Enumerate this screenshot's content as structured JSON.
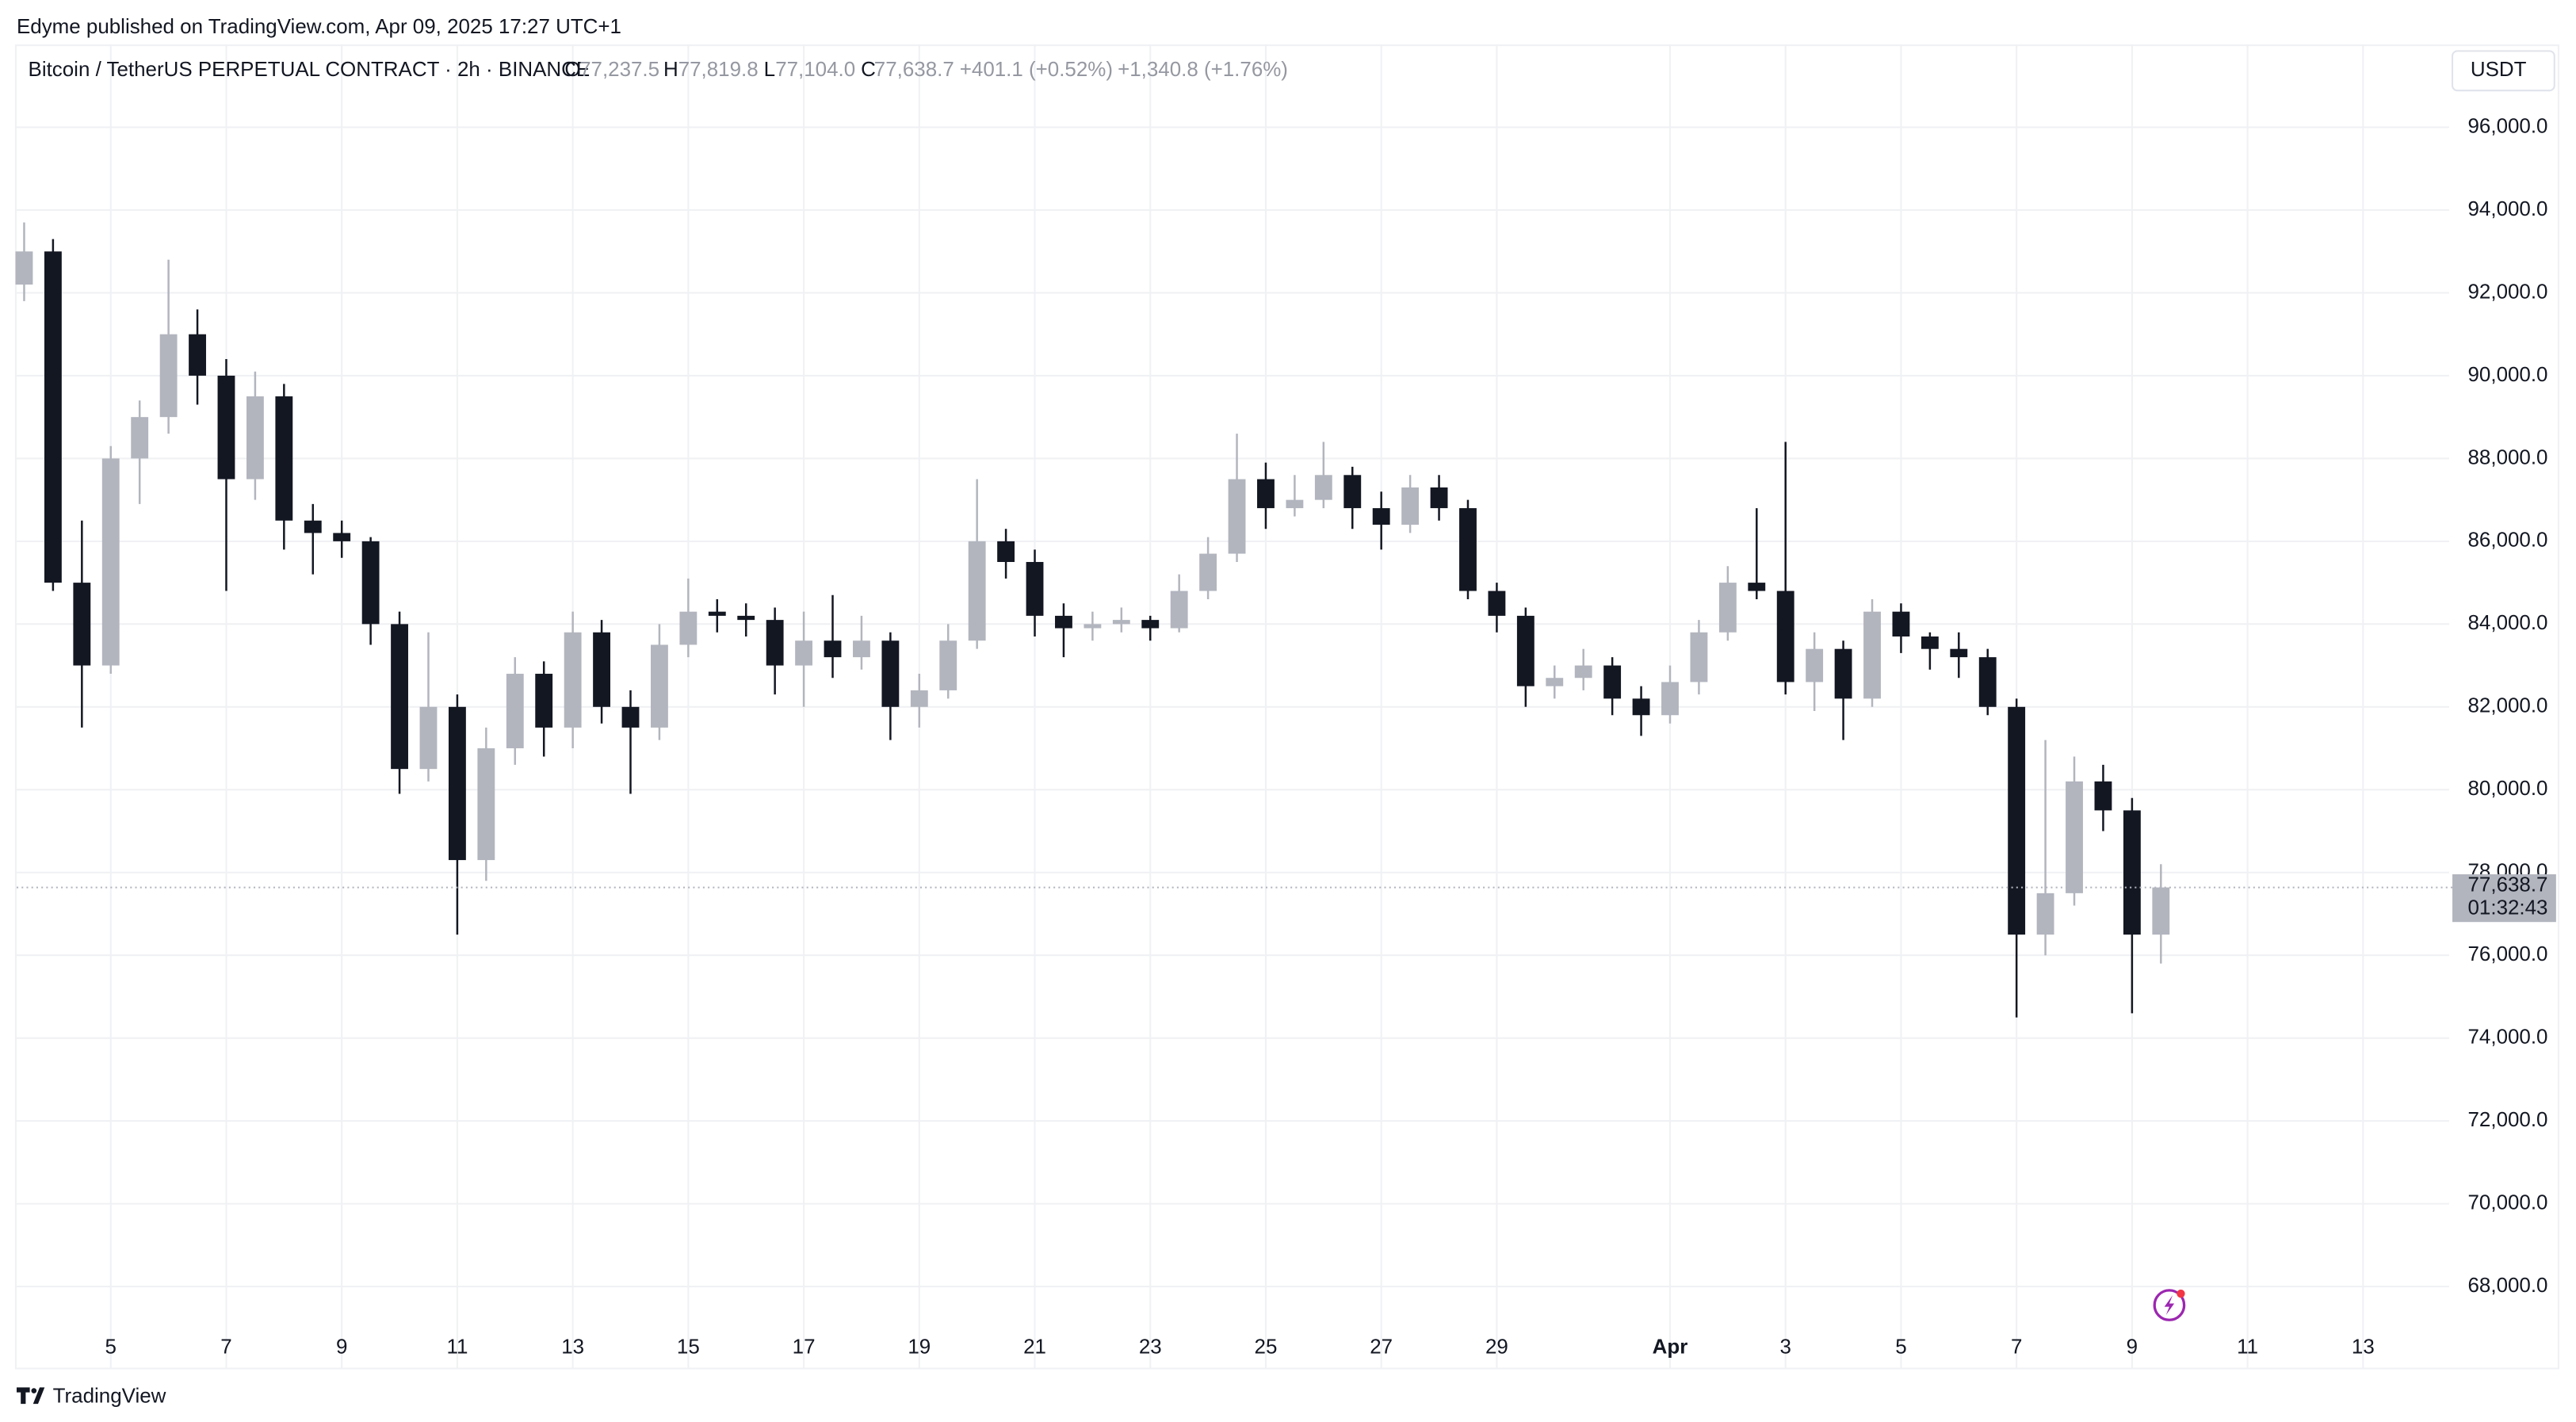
{
  "header": {
    "caption": "Edyme published on TradingView.com, Apr 09, 2025 17:27 UTC+1",
    "symbol": "Bitcoin / TetherUS PERPETUAL CONTRACT · 2h · BINANCE",
    "ohlc": [
      {
        "key": "O",
        "value": "77,237.5"
      },
      {
        "key": "H",
        "value": "77,819.8"
      },
      {
        "key": "L",
        "value": "77,104.0"
      },
      {
        "key": "C",
        "value": "77,638.7"
      }
    ],
    "change": "+401.1 (+0.52%)",
    "change_total": "+1,340.8 (+1.76%)",
    "currency": "USDT"
  },
  "footer": {
    "brand": "TradingView"
  },
  "chart_data": {
    "type": "candlestick",
    "x": [
      3.5,
      4,
      4.5,
      5,
      5.5,
      6,
      6.5,
      7,
      7.5,
      8,
      8.5,
      9,
      9.5,
      10,
      10.5,
      11,
      11.5,
      12,
      12.5,
      13,
      13.5,
      14,
      14.5,
      15,
      15.5,
      16,
      16.5,
      17,
      17.5,
      18,
      18.5,
      19,
      19.5,
      20,
      20.5,
      21,
      21.5,
      22,
      22.5,
      23,
      23.5,
      24,
      24.5,
      25,
      25.5,
      26,
      26.5,
      27,
      27.5,
      28,
      28.5,
      29,
      29.5,
      30,
      30.5,
      31,
      31.5,
      32,
      32.5,
      33,
      33.5,
      34,
      34.5,
      35,
      35.5,
      36,
      36.5,
      37,
      37.5,
      38,
      38.5,
      39,
      39.5,
      40,
      40.5
    ],
    "open": [
      92200,
      93000,
      85000,
      83000,
      88000,
      89000,
      91000,
      90000,
      87500,
      89500,
      86500,
      86200,
      86000,
      84000,
      80500,
      82000,
      78300,
      81000,
      82800,
      81500,
      83800,
      82000,
      81500,
      83500,
      84300,
      84200,
      84100,
      83000,
      83600,
      83200,
      83600,
      82000,
      82400,
      83600,
      86000,
      85500,
      84200,
      83900,
      84000,
      84100,
      83900,
      84800,
      85700,
      87500,
      86800,
      87000,
      87600,
      86800,
      86400,
      87300,
      86800,
      84800,
      84200,
      82500,
      82700,
      83000,
      82200,
      81800,
      82600,
      83800,
      85000,
      84800,
      82600,
      83400,
      82200,
      84300,
      83700,
      83400,
      83200,
      82000,
      76500,
      77500,
      80200,
      79500,
      76500
    ],
    "high": [
      93700,
      93300,
      86500,
      88300,
      89400,
      92800,
      91600,
      90400,
      90100,
      89800,
      86900,
      86500,
      86100,
      84300,
      83800,
      82300,
      81500,
      83200,
      83100,
      84300,
      84100,
      82400,
      84000,
      85100,
      84600,
      84500,
      84400,
      84300,
      84700,
      84200,
      83800,
      82800,
      84000,
      87500,
      86300,
      85800,
      84500,
      84300,
      84400,
      84200,
      85200,
      86100,
      88600,
      87900,
      87600,
      88400,
      87800,
      87200,
      87600,
      87600,
      87000,
      85000,
      84400,
      83000,
      83400,
      83200,
      82500,
      83000,
      84100,
      85400,
      86800,
      88400,
      83800,
      83600,
      84600,
      84500,
      83800,
      83800,
      83400,
      82200,
      81200,
      80800,
      80600,
      79800,
      78200
    ],
    "low": [
      91800,
      84800,
      81500,
      82800,
      86900,
      88600,
      89300,
      84800,
      87000,
      85800,
      85200,
      85600,
      83500,
      79900,
      80200,
      76500,
      77800,
      80600,
      80800,
      81000,
      81600,
      79900,
      81200,
      83200,
      83800,
      83700,
      82300,
      82000,
      82700,
      82900,
      81200,
      81500,
      82200,
      83400,
      85100,
      83700,
      83200,
      83600,
      83800,
      83600,
      83800,
      84600,
      85500,
      86300,
      86600,
      86800,
      86300,
      85800,
      86200,
      86500,
      84600,
      83800,
      82000,
      82200,
      82400,
      81800,
      81300,
      81600,
      82300,
      83600,
      84600,
      82300,
      81900,
      81200,
      82000,
      83300,
      82900,
      82700,
      81800,
      74500,
      76000,
      77200,
      79000,
      74600,
      75800
    ],
    "close": [
      93000,
      85000,
      83000,
      88000,
      89000,
      91000,
      90000,
      87500,
      89500,
      86500,
      86200,
      86000,
      84000,
      80500,
      82000,
      78300,
      81000,
      82800,
      81500,
      83800,
      82000,
      81500,
      83500,
      84300,
      84200,
      84100,
      83000,
      83600,
      83200,
      83600,
      82000,
      82400,
      83600,
      86000,
      85500,
      84200,
      83900,
      84000,
      84100,
      83900,
      84800,
      85700,
      87500,
      86800,
      87000,
      87600,
      86800,
      86400,
      87300,
      86800,
      84800,
      84200,
      82500,
      82700,
      83000,
      82200,
      81800,
      82600,
      83800,
      85000,
      84800,
      82600,
      83400,
      82200,
      84300,
      83700,
      83400,
      83200,
      82000,
      76500,
      77500,
      80200,
      79500,
      76500,
      77638.7
    ],
    "up_color": "#b2b5be",
    "down_color": "#131722",
    "xlim": [
      3.37,
      45.49
    ],
    "xticks": [
      5,
      7,
      9,
      11,
      13,
      15,
      17,
      19,
      21,
      23,
      25,
      27,
      29,
      {
        "value": 32,
        "label": "Apr"
      },
      {
        "value": 34,
        "label": "3"
      },
      {
        "value": 36,
        "label": "5"
      },
      {
        "value": 38,
        "label": "7"
      },
      {
        "value": 40,
        "label": "9"
      },
      {
        "value": 42,
        "label": "11"
      },
      {
        "value": 44,
        "label": "13"
      }
    ],
    "ylim": [
      66000,
      98000
    ],
    "yticks": [
      {
        "value": 68000,
        "label": "68,000.0"
      },
      {
        "value": 70000,
        "label": "70,000.0"
      },
      {
        "value": 72000,
        "label": "72,000.0"
      },
      {
        "value": 74000,
        "label": "74,000.0"
      },
      {
        "value": 76000,
        "label": "76,000.0"
      },
      {
        "value": 78000,
        "label": "78,000.0"
      },
      {
        "value": 80000,
        "label": "80,000.0"
      },
      {
        "value": 82000,
        "label": "82,000.0"
      },
      {
        "value": 84000,
        "label": "84,000.0"
      },
      {
        "value": 86000,
        "label": "86,000.0"
      },
      {
        "value": 88000,
        "label": "88,000.0"
      },
      {
        "value": 90000,
        "label": "90,000.0"
      },
      {
        "value": 92000,
        "label": "92,000.0"
      },
      {
        "value": 94000,
        "label": "94,000.0"
      },
      {
        "value": 96000,
        "label": "96,000.0"
      }
    ],
    "grid": true,
    "last_price": {
      "value": 77638.7,
      "label": "77,638.7"
    },
    "countdown": "01:32:43"
  }
}
